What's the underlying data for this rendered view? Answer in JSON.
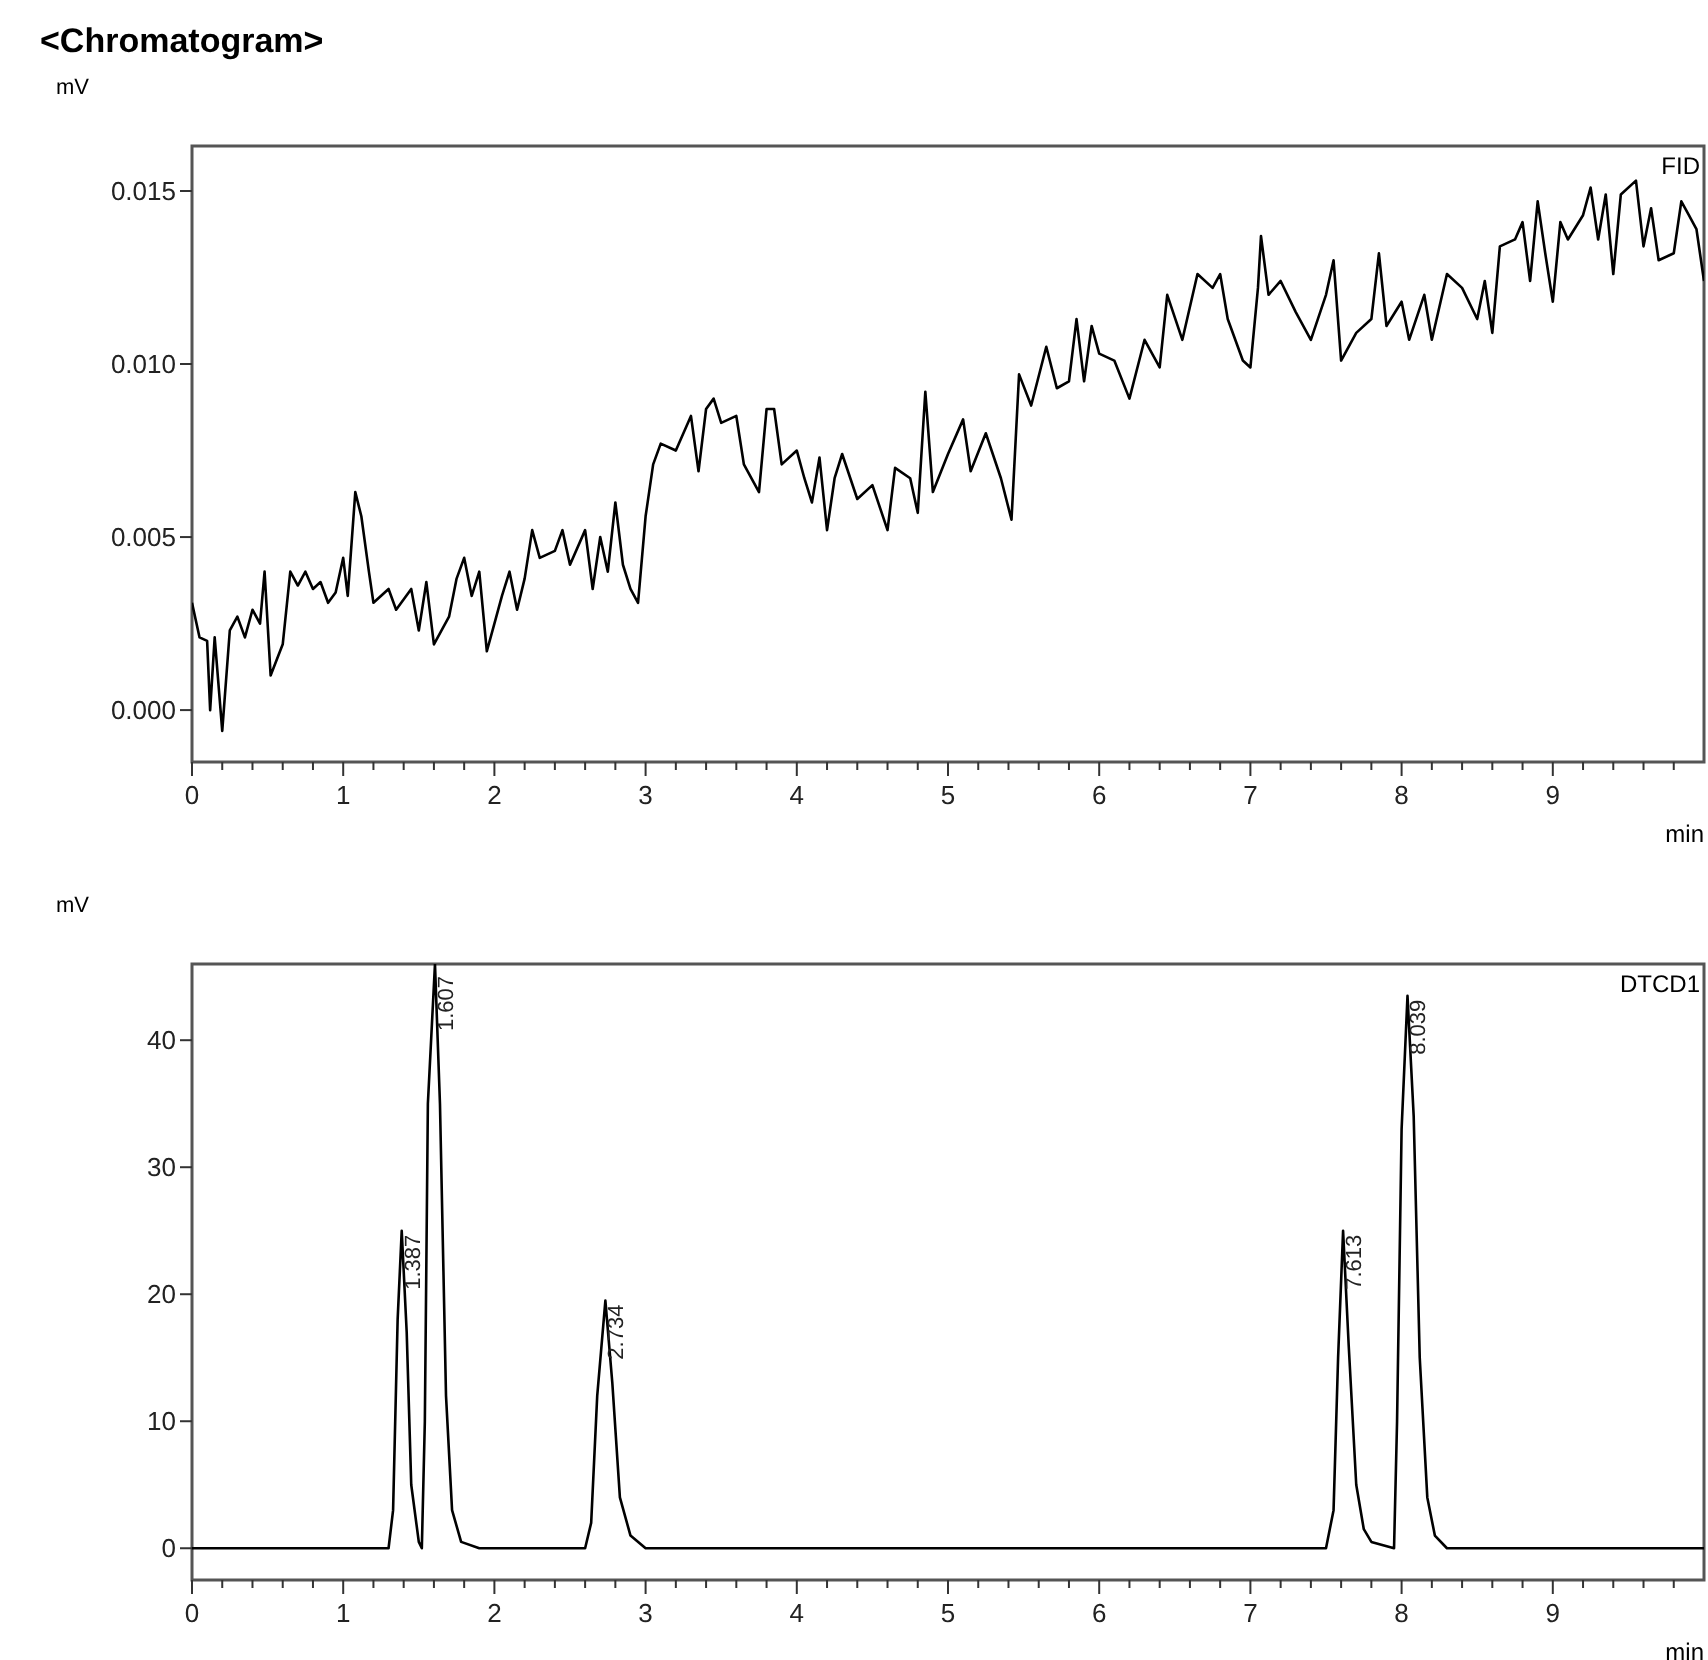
{
  "chart_data": [
    {
      "type": "line",
      "title": "<Chromatogram>",
      "ylabel": "mV",
      "xlabel": "min",
      "xlim": [
        0,
        10
      ],
      "ylim": [
        -0.0015,
        0.0163
      ],
      "xticks": [
        0,
        {
          "value": 0.2,
          "label": null
        },
        {
          "value": 0.4,
          "label": null
        },
        {
          "value": 0.6,
          "label": null
        },
        {
          "value": 0.8,
          "label": null
        },
        1,
        {
          "value": 1.2,
          "label": null
        },
        {
          "value": 1.4,
          "label": null
        },
        {
          "value": 1.6,
          "label": null
        },
        {
          "value": 1.8,
          "label": null
        },
        2,
        {
          "value": 2.2,
          "label": null
        },
        {
          "value": 2.4,
          "label": null
        },
        {
          "value": 2.6,
          "label": null
        },
        {
          "value": 2.8,
          "label": null
        },
        3,
        {
          "value": 3.2,
          "label": null
        },
        {
          "value": 3.4,
          "label": null
        },
        {
          "value": 3.6,
          "label": null
        },
        {
          "value": 3.8,
          "label": null
        },
        4,
        {
          "value": 4.2,
          "label": null
        },
        {
          "value": 4.4,
          "label": null
        },
        {
          "value": 4.6,
          "label": null
        },
        {
          "value": 4.8,
          "label": null
        },
        5,
        {
          "value": 5.2,
          "label": null
        },
        {
          "value": 5.4,
          "label": null
        },
        {
          "value": 5.6,
          "label": null
        },
        {
          "value": 5.8,
          "label": null
        },
        6,
        {
          "value": 6.2,
          "label": null
        },
        {
          "value": 6.4,
          "label": null
        },
        {
          "value": 6.6,
          "label": null
        },
        {
          "value": 6.8,
          "label": null
        },
        7,
        {
          "value": 7.2,
          "label": null
        },
        {
          "value": 7.4,
          "label": null
        },
        {
          "value": 7.6,
          "label": null
        },
        {
          "value": 7.8,
          "label": null
        },
        8,
        {
          "value": 8.2,
          "label": null
        },
        {
          "value": 8.4,
          "label": null
        },
        {
          "value": 8.6,
          "label": null
        },
        {
          "value": 8.8,
          "label": null
        },
        9,
        {
          "value": 9.2,
          "label": null
        },
        {
          "value": 9.4,
          "label": null
        },
        {
          "value": 9.6,
          "label": null
        },
        {
          "value": 9.8,
          "label": null
        }
      ],
      "yticks": [
        {
          "value": 0,
          "label": "0.000"
        },
        {
          "value": 0.005,
          "label": "0.005"
        },
        {
          "value": 0.01,
          "label": "0.010"
        },
        {
          "value": 0.015,
          "label": "0.015"
        }
      ],
      "grid": false,
      "legend": "top right",
      "series": [
        {
          "name": "FID",
          "color": "#000000",
          "x": [
            0,
            0.05,
            0.1,
            0.12,
            0.15,
            0.2,
            0.25,
            0.3,
            0.35,
            0.4,
            0.45,
            0.48,
            0.52,
            0.6,
            0.65,
            0.7,
            0.75,
            0.8,
            0.85,
            0.9,
            0.95,
            1.0,
            1.03,
            1.08,
            1.12,
            1.17,
            1.2,
            1.3,
            1.35,
            1.45,
            1.5,
            1.55,
            1.6,
            1.7,
            1.75,
            1.8,
            1.85,
            1.9,
            1.95,
            2.0,
            2.05,
            2.1,
            2.15,
            2.2,
            2.25,
            2.3,
            2.4,
            2.45,
            2.5,
            2.6,
            2.65,
            2.7,
            2.75,
            2.8,
            2.85,
            2.9,
            2.95,
            3.0,
            3.05,
            3.1,
            3.2,
            3.3,
            3.35,
            3.4,
            3.45,
            3.5,
            3.6,
            3.65,
            3.75,
            3.8,
            3.85,
            3.9,
            4.0,
            4.05,
            4.1,
            4.15,
            4.2,
            4.25,
            4.3,
            4.4,
            4.5,
            4.6,
            4.65,
            4.75,
            4.8,
            4.85,
            4.9,
            5.0,
            5.1,
            5.15,
            5.25,
            5.35,
            5.42,
            5.47,
            5.55,
            5.65,
            5.72,
            5.8,
            5.85,
            5.9,
            5.95,
            6.0,
            6.1,
            6.2,
            6.3,
            6.4,
            6.45,
            6.55,
            6.65,
            6.75,
            6.8,
            6.85,
            6.95,
            7.0,
            7.05,
            7.07,
            7.12,
            7.2,
            7.3,
            7.4,
            7.5,
            7.55,
            7.6,
            7.7,
            7.8,
            7.85,
            7.9,
            8.0,
            8.05,
            8.15,
            8.2,
            8.3,
            8.4,
            8.5,
            8.55,
            8.6,
            8.65,
            8.75,
            8.8,
            8.85,
            8.9,
            8.95,
            9.0,
            9.05,
            9.1,
            9.2,
            9.25,
            9.3,
            9.35,
            9.4,
            9.45,
            9.55,
            9.6,
            9.65,
            9.7,
            9.8,
            9.85,
            9.9,
            9.95,
            10.0
          ],
          "values": [
            0.0031,
            0.0021,
            0.002,
            0.0,
            0.0021,
            -0.0006,
            0.0023,
            0.0027,
            0.0021,
            0.0029,
            0.0025,
            0.004,
            0.001,
            0.0019,
            0.004,
            0.0036,
            0.004,
            0.0035,
            0.0037,
            0.0031,
            0.0034,
            0.0044,
            0.0033,
            0.0063,
            0.0056,
            0.004,
            0.0031,
            0.0035,
            0.0029,
            0.0035,
            0.0023,
            0.0037,
            0.0019,
            0.0027,
            0.0038,
            0.0044,
            0.0033,
            0.004,
            0.0017,
            0.0025,
            0.0033,
            0.004,
            0.0029,
            0.0038,
            0.0052,
            0.0044,
            0.0046,
            0.0052,
            0.0042,
            0.0052,
            0.0035,
            0.005,
            0.004,
            0.006,
            0.0042,
            0.0035,
            0.0031,
            0.0056,
            0.0071,
            0.0077,
            0.0075,
            0.0085,
            0.0069,
            0.0087,
            0.009,
            0.0083,
            0.0085,
            0.0071,
            0.0063,
            0.0087,
            0.0087,
            0.0071,
            0.0075,
            0.0067,
            0.006,
            0.0073,
            0.0052,
            0.0067,
            0.0074,
            0.0061,
            0.0065,
            0.0052,
            0.007,
            0.0067,
            0.0057,
            0.0092,
            0.0063,
            0.0074,
            0.0084,
            0.0069,
            0.008,
            0.0067,
            0.0055,
            0.0097,
            0.0088,
            0.0105,
            0.0093,
            0.0095,
            0.0113,
            0.0095,
            0.0111,
            0.0103,
            0.0101,
            0.009,
            0.0107,
            0.0099,
            0.012,
            0.0107,
            0.0126,
            0.0122,
            0.0126,
            0.0113,
            0.0101,
            0.0099,
            0.0122,
            0.0137,
            0.012,
            0.0124,
            0.0115,
            0.0107,
            0.012,
            0.013,
            0.0101,
            0.0109,
            0.0113,
            0.0132,
            0.0111,
            0.0118,
            0.0107,
            0.012,
            0.0107,
            0.0126,
            0.0122,
            0.0113,
            0.0124,
            0.0109,
            0.0134,
            0.0136,
            0.0141,
            0.0124,
            0.0147,
            0.0132,
            0.0118,
            0.0141,
            0.0136,
            0.0143,
            0.0151,
            0.0136,
            0.0149,
            0.0126,
            0.0149,
            0.0153,
            0.0134,
            0.0145,
            0.013,
            0.0132,
            0.0147,
            0.0143,
            0.0139,
            0.0124
          ]
        }
      ]
    },
    {
      "type": "line",
      "ylabel": "mV",
      "xlabel": "min",
      "xlim": [
        0,
        10
      ],
      "ylim": [
        -2.5,
        46
      ],
      "xticks": [
        0,
        {
          "value": 0.2,
          "label": null
        },
        {
          "value": 0.4,
          "label": null
        },
        {
          "value": 0.6,
          "label": null
        },
        {
          "value": 0.8,
          "label": null
        },
        1,
        {
          "value": 1.2,
          "label": null
        },
        {
          "value": 1.4,
          "label": null
        },
        {
          "value": 1.6,
          "label": null
        },
        {
          "value": 1.8,
          "label": null
        },
        2,
        {
          "value": 2.2,
          "label": null
        },
        {
          "value": 2.4,
          "label": null
        },
        {
          "value": 2.6,
          "label": null
        },
        {
          "value": 2.8,
          "label": null
        },
        3,
        {
          "value": 3.2,
          "label": null
        },
        {
          "value": 3.4,
          "label": null
        },
        {
          "value": 3.6,
          "label": null
        },
        {
          "value": 3.8,
          "label": null
        },
        4,
        {
          "value": 4.2,
          "label": null
        },
        {
          "value": 4.4,
          "label": null
        },
        {
          "value": 4.6,
          "label": null
        },
        {
          "value": 4.8,
          "label": null
        },
        5,
        {
          "value": 5.2,
          "label": null
        },
        {
          "value": 5.4,
          "label": null
        },
        {
          "value": 5.6,
          "label": null
        },
        {
          "value": 5.8,
          "label": null
        },
        6,
        {
          "value": 6.2,
          "label": null
        },
        {
          "value": 6.4,
          "label": null
        },
        {
          "value": 6.6,
          "label": null
        },
        {
          "value": 6.8,
          "label": null
        },
        7,
        {
          "value": 7.2,
          "label": null
        },
        {
          "value": 7.4,
          "label": null
        },
        {
          "value": 7.6,
          "label": null
        },
        {
          "value": 7.8,
          "label": null
        },
        8,
        {
          "value": 8.2,
          "label": null
        },
        {
          "value": 8.4,
          "label": null
        },
        {
          "value": 8.6,
          "label": null
        },
        {
          "value": 8.8,
          "label": null
        },
        9,
        {
          "value": 9.2,
          "label": null
        },
        {
          "value": 9.4,
          "label": null
        },
        {
          "value": 9.6,
          "label": null
        },
        {
          "value": 9.8,
          "label": null
        }
      ],
      "yticks": [
        0,
        10,
        20,
        30,
        40
      ],
      "grid": false,
      "legend": "top right",
      "annotations": [
        {
          "text": "1.387",
          "x": 1.387,
          "y": 25
        },
        {
          "text": "1.607",
          "x": 1.607,
          "y": 46
        },
        {
          "text": "2.734",
          "x": 2.734,
          "y": 19.5
        },
        {
          "text": "7.613",
          "x": 7.613,
          "y": 25
        },
        {
          "text": "8.039",
          "x": 8.039,
          "y": 43.5
        }
      ],
      "series": [
        {
          "name": "DTCD1",
          "color": "#000000",
          "x": [
            0,
            1.3,
            1.33,
            1.36,
            1.387,
            1.42,
            1.45,
            1.5,
            1.52,
            1.54,
            1.56,
            1.607,
            1.64,
            1.68,
            1.72,
            1.78,
            1.9,
            2.6,
            2.64,
            2.68,
            2.734,
            2.78,
            2.83,
            2.9,
            3.0,
            7.5,
            7.55,
            7.58,
            7.613,
            7.65,
            7.7,
            7.75,
            7.8,
            7.95,
            7.97,
            8.0,
            8.039,
            8.08,
            8.12,
            8.17,
            8.22,
            8.3,
            10
          ],
          "values": [
            0,
            0,
            3,
            18,
            25,
            17,
            5,
            0.5,
            0,
            10,
            35,
            46,
            35,
            12,
            3,
            0.5,
            0,
            0,
            2,
            12,
            19.5,
            13,
            4,
            1,
            0,
            0,
            3,
            15,
            25,
            16,
            5,
            1.5,
            0.5,
            0,
            10,
            33,
            43.5,
            34,
            15,
            4,
            1,
            0,
            0
          ]
        }
      ]
    }
  ]
}
